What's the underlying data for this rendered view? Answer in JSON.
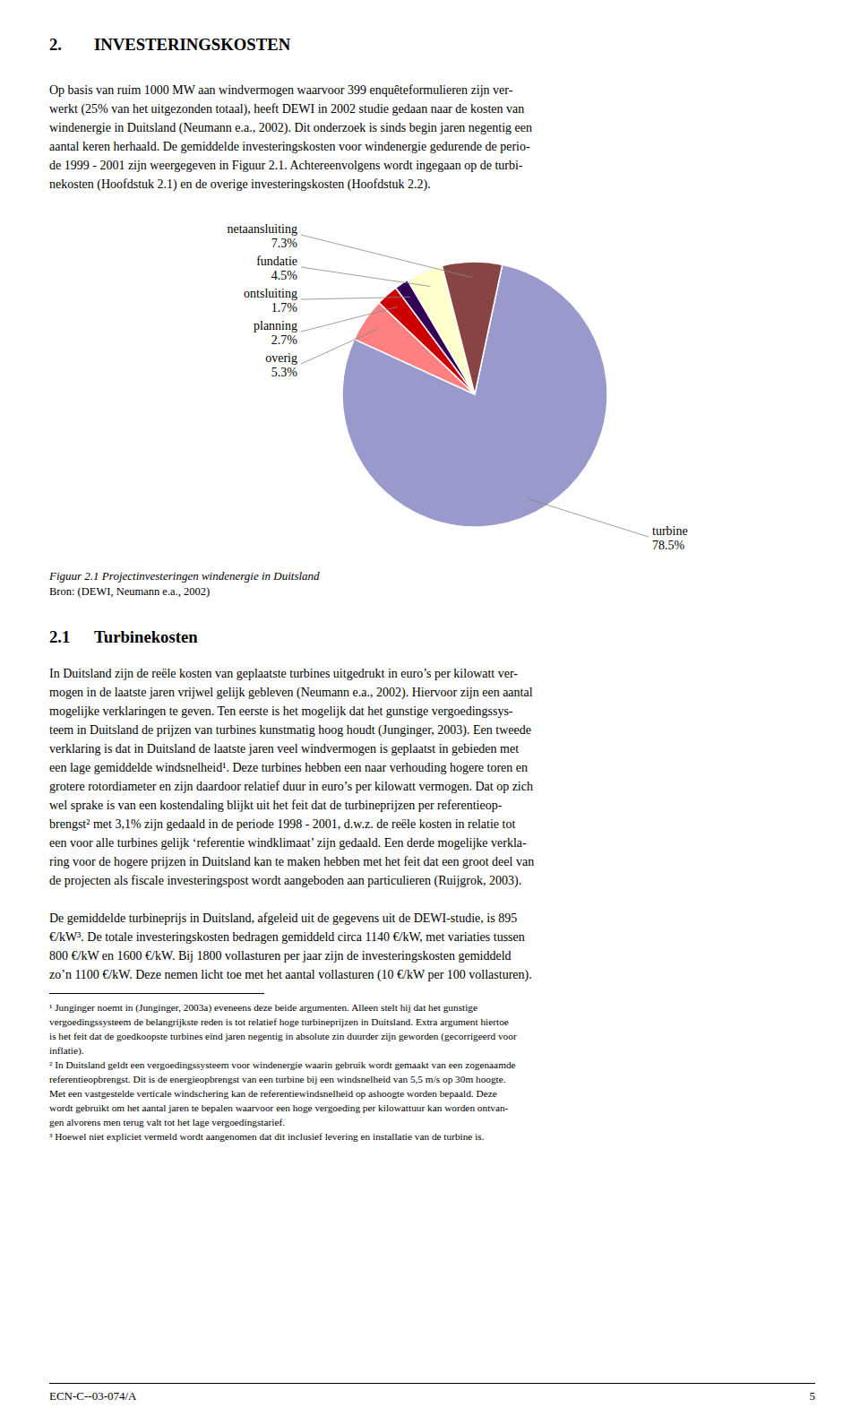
{
  "chart_data": {
    "type": "pie",
    "title": "Figuur 2.1 Projectinvesteringen windenergie in Duitsland",
    "annotations": [
      "Bron: (DEWI, Neumann e.a., 2002)"
    ],
    "categories": [
      "turbine",
      "overig",
      "planning",
      "ontsluiting",
      "fundatie",
      "netaansluiting"
    ],
    "values": [
      78.5,
      5.3,
      2.7,
      1.7,
      4.5,
      7.3
    ],
    "value_labels": [
      "78.5%",
      "5.3%",
      "2.7%",
      "1.7%",
      "4.5%",
      "7.3%"
    ],
    "colors": [
      "#9999CC",
      "#FF8080",
      "#CC0000",
      "#330055",
      "#FFFFCC",
      "#884444"
    ],
    "data_labels": true
  },
  "page": {
    "heading": {
      "number": "2.",
      "text": "INVESTERINGSKOSTEN"
    },
    "intro": [
      "Op basis van ruim 1000 MW aan windvermogen waarvoor 399 enquêteformulieren zijn ver-",
      "werkt (25% van het uitgezonden totaal), heeft DEWI in 2002 studie gedaan naar de kosten van",
      "windenergie in Duitsland (Neumann e.a., 2002). Dit onderzoek is sinds begin jaren negentig een",
      "aantal keren herhaald. De gemiddelde investeringskosten voor windenergie gedurende de perio-",
      "de 1999 - 2001 zijn weergegeven in Figuur 2.1. Achtereenvolgens wordt ingegaan op de turbi-",
      "nekosten (Hoofdstuk 2.1) en de overige investeringskosten (Hoofdstuk 2.2)."
    ],
    "section": {
      "number": "2.1",
      "text": "Turbinekosten"
    },
    "section_text": [
      "In Duitsland zijn de reële kosten van geplaatste turbines uitgedrukt in euro’s per kilowatt ver-",
      "mogen in de laatste jaren vrijwel gelijk gebleven (Neumann e.a., 2002). Hiervoor zijn een aantal",
      "mogelijke verklaringen te geven. Ten eerste is het mogelijk dat het gunstige vergoedingssys-",
      "teem in Duitsland de prijzen van turbines kunstmatig hoog houdt (Junginger, 2003). Een tweede",
      "verklaring is dat in Duitsland de laatste jaren veel windvermogen is geplaatst in gebieden met",
      "een lage gemiddelde windsnelheid¹. Deze turbines hebben een naar verhouding hogere toren en",
      "grotere rotordiameter en zijn daardoor relatief duur in euro’s per kilowatt vermogen. Dat op zich",
      "wel sprake is van een kostendaling blijkt uit het feit dat de turbineprijzen per referentieop-",
      "brengst² met 3,1% zijn gedaald in de periode 1998 - 2001, d.w.z. de reële kosten in relatie tot",
      "een voor alle turbines gelijk ‘referentie windklimaat’ zijn gedaald. Een derde mogelijke verkla-",
      "ring voor de hogere prijzen in Duitsland kan te maken hebben met het feit dat een groot deel van",
      "de projecten als fiscale investeringspost wordt aangeboden aan particulieren (Ruijgrok, 2003)."
    ],
    "final_para": [
      "De gemiddelde turbineprijs in Duitsland, afgeleid uit de gegevens uit de DEWI-studie, is 895",
      "€/kW³. De totale investeringskosten bedragen gemiddeld circa 1140 €/kW, met variaties tussen",
      "800 €/kW en 1600 €/kW. Bij 1800 vollasturen per jaar zijn de investeringskosten gemiddeld",
      "zo’n 1100 €/kW. Deze nemen licht toe met het aantal vollasturen (10 €/kW per 100 vollasturen)."
    ],
    "footnotes": [
      "¹ Junginger noemt in (Junginger, 2003a) eveneens deze beide argumenten. Alleen stelt hij dat het gunstige",
      "vergoedingssysteem de belangrijkste reden is tot relatief hoge turbineprijzen in Duitsland. Extra argument hiertoe",
      "is het feit dat de goedkoopste turbines eind jaren negentig in absolute zin duurder zijn geworden (gecorrigeerd voor",
      "inflatie).",
      "² In Duitsland geldt een vergoedingssysteem voor windenergie waarin gebruik wordt gemaakt van een zogenaamde",
      "referentieopbrengst. Dit is de energieopbrengst van een turbine bij een windsnelheid van 5,5 m/s op 30m hoogte.",
      "Met een vastgestelde verticale windschering kan de referentiewindsnelheid op ashoogte worden bepaald. Deze",
      "wordt gebruikt om het aantal jaren te bepalen waarvoor een hoge vergoeding per kilowattuur kan worden ontvan-",
      "gen alvorens men terug valt tot het lage vergoedingstarief.",
      "³ Hoewel niet expliciet vermeld wordt aangenomen dat dit inclusief levering en installatie van de turbine is."
    ],
    "footer_left": "ECN-C--03-074/A",
    "footer_right": "5"
  }
}
